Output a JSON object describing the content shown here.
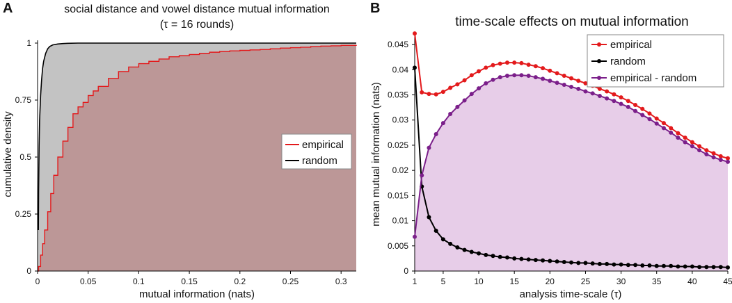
{
  "panel_a": {
    "letter": "A",
    "title_line1": "social distance and vowel distance mutual information",
    "title_line2": "(τ = 16 rounds)",
    "xlabel": "mutual information (nats)",
    "ylabel": "cumulative density",
    "legend": [
      "empirical",
      "random"
    ]
  },
  "panel_b": {
    "letter": "B",
    "title": "time-scale effects on mutual information",
    "xlabel": "analysis time-scale (τ)",
    "ylabel": "mean mutual information (nats)",
    "legend": [
      "empirical",
      "random",
      "empirical - random"
    ]
  },
  "colors": {
    "empirical": "#e31a1c",
    "random": "#000000",
    "difference": "#7b1f8a",
    "random_fill": "#c3c3c3",
    "empirical_fill": "#bc9797",
    "difference_fill": "#e7cde8"
  },
  "chart_data": [
    {
      "type": "area",
      "title": "social distance and vowel distance mutual information (τ = 16 rounds)",
      "xlabel": "mutual information (nats)",
      "ylabel": "cumulative density",
      "xlim": [
        0,
        0.315
      ],
      "ylim": [
        0,
        1
      ],
      "xticks": [
        "0",
        "0.05",
        "0.1",
        "0.15",
        "0.2",
        "0.25",
        "0.3"
      ],
      "xtick_values": [
        0,
        0.05,
        0.1,
        0.15,
        0.2,
        0.25,
        0.3
      ],
      "yticks": [
        "0",
        "0.25",
        "0.5",
        "0.75",
        "1"
      ],
      "ytick_values": [
        0,
        0.25,
        0.5,
        0.75,
        1
      ],
      "legend_position": "center-right",
      "series": [
        {
          "name": "empirical",
          "x": [
            0,
            0.001,
            0.003,
            0.005,
            0.007,
            0.01,
            0.013,
            0.016,
            0.02,
            0.025,
            0.03,
            0.035,
            0.04,
            0.045,
            0.05,
            0.055,
            0.06,
            0.07,
            0.08,
            0.09,
            0.1,
            0.11,
            0.12,
            0.13,
            0.14,
            0.15,
            0.16,
            0.17,
            0.18,
            0.19,
            0.2,
            0.21,
            0.22,
            0.23,
            0.24,
            0.25,
            0.26,
            0.27,
            0.28,
            0.29,
            0.3,
            0.315
          ],
          "y": [
            0,
            0.02,
            0.07,
            0.12,
            0.18,
            0.26,
            0.34,
            0.42,
            0.5,
            0.57,
            0.63,
            0.69,
            0.72,
            0.74,
            0.77,
            0.79,
            0.81,
            0.845,
            0.875,
            0.895,
            0.91,
            0.92,
            0.93,
            0.94,
            0.945,
            0.95,
            0.955,
            0.96,
            0.963,
            0.966,
            0.968,
            0.97,
            0.972,
            0.975,
            0.978,
            0.98,
            0.982,
            0.985,
            0.987,
            0.988,
            0.99,
            0.992
          ]
        },
        {
          "name": "random",
          "x": [
            0.0008,
            0.001,
            0.0015,
            0.002,
            0.003,
            0.004,
            0.005,
            0.006,
            0.008,
            0.01,
            0.012,
            0.015,
            0.02,
            0.025,
            0.03,
            0.04,
            0.06,
            0.315
          ],
          "y": [
            0.18,
            0.35,
            0.55,
            0.66,
            0.77,
            0.84,
            0.89,
            0.92,
            0.955,
            0.975,
            0.985,
            0.992,
            0.996,
            0.998,
            0.999,
            1,
            1,
            1
          ]
        }
      ]
    },
    {
      "type": "line",
      "title": "time-scale effects on mutual information",
      "xlabel": "analysis time-scale (τ)",
      "ylabel": "mean mutual information (nats)",
      "xlim": [
        0,
        45
      ],
      "ylim": [
        0,
        0.0475
      ],
      "xticks": [
        "1",
        "5",
        "10",
        "15",
        "20",
        "25",
        "30",
        "35",
        "40",
        "45"
      ],
      "xtick_values": [
        1,
        5,
        10,
        15,
        20,
        25,
        30,
        35,
        40,
        45
      ],
      "yticks": [
        "0",
        "0.005",
        "0.01",
        "0.015",
        "0.02",
        "0.025",
        "0.03",
        "0.035",
        "0.04",
        "0.045"
      ],
      "ytick_values": [
        0,
        0.005,
        0.01,
        0.015,
        0.02,
        0.025,
        0.03,
        0.035,
        0.04,
        0.045
      ],
      "legend_position": "top-right",
      "x": [
        1,
        2,
        3,
        4,
        5,
        6,
        7,
        8,
        9,
        10,
        11,
        12,
        13,
        14,
        15,
        16,
        17,
        18,
        19,
        20,
        21,
        22,
        23,
        24,
        25,
        26,
        27,
        28,
        29,
        30,
        31,
        32,
        33,
        34,
        35,
        36,
        37,
        38,
        39,
        40,
        41,
        42,
        43,
        44,
        45
      ],
      "series": [
        {
          "name": "empirical",
          "values": [
            0.0472,
            0.0355,
            0.0352,
            0.0351,
            0.0356,
            0.0364,
            0.0371,
            0.0379,
            0.0389,
            0.0397,
            0.0404,
            0.0409,
            0.0412,
            0.0414,
            0.0414,
            0.0413,
            0.041,
            0.0407,
            0.0403,
            0.0398,
            0.0393,
            0.0388,
            0.0383,
            0.0378,
            0.0373,
            0.0368,
            0.0362,
            0.0357,
            0.0351,
            0.0345,
            0.0338,
            0.033,
            0.0322,
            0.0313,
            0.0303,
            0.0294,
            0.0284,
            0.0274,
            0.0265,
            0.0256,
            0.0248,
            0.024,
            0.0234,
            0.0228,
            0.0224
          ]
        },
        {
          "name": "random",
          "values": [
            0.0404,
            0.0168,
            0.0107,
            0.008,
            0.0063,
            0.0054,
            0.0047,
            0.0042,
            0.0038,
            0.0035,
            0.0032,
            0.003,
            0.0028,
            0.0027,
            0.0025,
            0.0024,
            0.0023,
            0.0022,
            0.0021,
            0.002,
            0.0019,
            0.0018,
            0.0017,
            0.0016,
            0.0016,
            0.0015,
            0.0014,
            0.0014,
            0.0013,
            0.0013,
            0.0012,
            0.0012,
            0.0011,
            0.0011,
            0.001,
            0.001,
            0.001,
            0.0009,
            0.0009,
            0.0009,
            0.0008,
            0.0008,
            0.0008,
            0.0008,
            0.0007
          ]
        },
        {
          "name": "empirical - random",
          "values": [
            0.0068,
            0.019,
            0.0245,
            0.0272,
            0.0294,
            0.0312,
            0.0326,
            0.0339,
            0.0352,
            0.0363,
            0.0373,
            0.038,
            0.0385,
            0.0388,
            0.0389,
            0.0389,
            0.0388,
            0.0385,
            0.0382,
            0.0378,
            0.0374,
            0.037,
            0.0366,
            0.0362,
            0.0357,
            0.0353,
            0.0348,
            0.0343,
            0.0338,
            0.0332,
            0.0326,
            0.0318,
            0.031,
            0.0302,
            0.0293,
            0.0284,
            0.0275,
            0.0265,
            0.0256,
            0.0248,
            0.024,
            0.0232,
            0.0226,
            0.0221,
            0.0217
          ]
        }
      ]
    }
  ]
}
